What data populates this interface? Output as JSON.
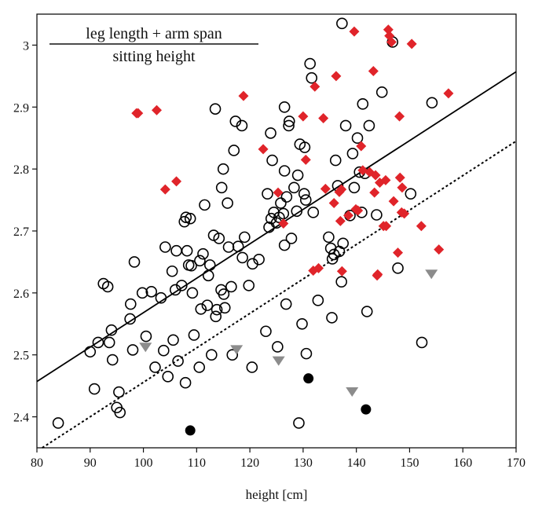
{
  "chart_data": {
    "type": "scatter",
    "title": "",
    "xlabel": "height [cm]",
    "ylabel": "",
    "xlim": [
      80,
      170
    ],
    "ylim": [
      2.35,
      3.05
    ],
    "xticks": [
      80,
      90,
      100,
      110,
      120,
      130,
      140,
      150,
      160,
      170
    ],
    "yticks": [
      2.4,
      2.5,
      2.6,
      2.7,
      2.8,
      2.9,
      3
    ],
    "ytick_labels": [
      "2.4",
      "2.5",
      "2.6",
      "2.7",
      "2.8",
      "2.9",
      "3"
    ],
    "grid": false,
    "annotation": {
      "numerator": "leg length + arm span",
      "denominator": "sitting height"
    },
    "series": [
      {
        "marker": "open-circle",
        "color": "#000000",
        "points": [
          [
            84,
            2.39
          ],
          [
            90,
            2.505
          ],
          [
            90.8,
            2.445
          ],
          [
            91.5,
            2.52
          ],
          [
            92.5,
            2.615
          ],
          [
            93.3,
            2.61
          ],
          [
            93.6,
            2.52
          ],
          [
            94,
            2.54
          ],
          [
            94.2,
            2.492
          ],
          [
            95,
            2.415
          ],
          [
            95.4,
            2.44
          ],
          [
            95.6,
            2.407
          ],
          [
            97.5,
            2.558
          ],
          [
            97.6,
            2.582
          ],
          [
            98,
            2.508
          ],
          [
            98.3,
            2.65
          ],
          [
            99.8,
            2.6
          ],
          [
            100.5,
            2.53
          ],
          [
            101.5,
            2.602
          ],
          [
            102.2,
            2.48
          ],
          [
            103.3,
            2.592
          ],
          [
            103.8,
            2.507
          ],
          [
            104.1,
            2.674
          ],
          [
            104.6,
            2.465
          ],
          [
            105.4,
            2.635
          ],
          [
            105.6,
            2.524
          ],
          [
            106,
            2.605
          ],
          [
            106.2,
            2.668
          ],
          [
            106.5,
            2.49
          ],
          [
            107.2,
            2.612
          ],
          [
            107.7,
            2.715
          ],
          [
            107.9,
            2.455
          ],
          [
            108,
            2.722
          ],
          [
            108.2,
            2.668
          ],
          [
            108.5,
            2.645
          ],
          [
            108.8,
            2.72
          ],
          [
            109,
            2.644
          ],
          [
            109.2,
            2.6
          ],
          [
            109.5,
            2.532
          ],
          [
            110.5,
            2.48
          ],
          [
            110.6,
            2.652
          ],
          [
            110.8,
            2.574
          ],
          [
            111.2,
            2.663
          ],
          [
            111.5,
            2.742
          ],
          [
            112,
            2.58
          ],
          [
            112.2,
            2.628
          ],
          [
            112.5,
            2.645
          ],
          [
            112.8,
            2.5
          ],
          [
            113.2,
            2.693
          ],
          [
            113.5,
            2.897
          ],
          [
            113.6,
            2.562
          ],
          [
            113.8,
            2.573
          ],
          [
            114.2,
            2.688
          ],
          [
            114.6,
            2.605
          ],
          [
            114.7,
            2.77
          ],
          [
            115,
            2.8
          ],
          [
            115.1,
            2.598
          ],
          [
            115.3,
            2.576
          ],
          [
            115.8,
            2.745
          ],
          [
            116,
            2.674
          ],
          [
            116.5,
            2.61
          ],
          [
            116.7,
            2.5
          ],
          [
            117,
            2.83
          ],
          [
            117.3,
            2.877
          ],
          [
            117.8,
            2.675
          ],
          [
            118.5,
            2.87
          ],
          [
            118.6,
            2.657
          ],
          [
            119,
            2.69
          ],
          [
            119.8,
            2.612
          ],
          [
            120.4,
            2.48
          ],
          [
            120.5,
            2.647
          ],
          [
            121.7,
            2.654
          ],
          [
            123,
            2.538
          ],
          [
            123.3,
            2.76
          ],
          [
            123.6,
            2.706
          ],
          [
            123.9,
            2.858
          ],
          [
            124,
            2.72
          ],
          [
            124.2,
            2.814
          ],
          [
            124.5,
            2.73
          ],
          [
            125,
            2.713
          ],
          [
            125.2,
            2.513
          ],
          [
            125.5,
            2.722
          ],
          [
            125.8,
            2.745
          ],
          [
            126.3,
            2.728
          ],
          [
            126.5,
            2.677
          ],
          [
            126.5,
            2.797
          ],
          [
            126.5,
            2.9
          ],
          [
            126.8,
            2.582
          ],
          [
            126.9,
            2.755
          ],
          [
            127.3,
            2.87
          ],
          [
            127.4,
            2.877
          ],
          [
            127.8,
            2.688
          ],
          [
            128.3,
            2.77
          ],
          [
            128.8,
            2.732
          ],
          [
            129,
            2.79
          ],
          [
            129.2,
            2.39
          ],
          [
            129.4,
            2.84
          ],
          [
            129.8,
            2.55
          ],
          [
            130.2,
            2.76
          ],
          [
            130.3,
            2.835
          ],
          [
            130.5,
            2.75
          ],
          [
            130.6,
            2.502
          ],
          [
            131.3,
            2.97
          ],
          [
            131.6,
            2.947
          ],
          [
            131.9,
            2.73
          ],
          [
            132.8,
            2.588
          ],
          [
            134.8,
            2.69
          ],
          [
            135.2,
            2.672
          ],
          [
            135.4,
            2.56
          ],
          [
            135.5,
            2.655
          ],
          [
            135.8,
            2.662
          ],
          [
            136.1,
            2.814
          ],
          [
            136.5,
            2.773
          ],
          [
            136.8,
            2.667
          ],
          [
            137.2,
            2.618
          ],
          [
            137.3,
            3.035
          ],
          [
            137.5,
            2.68
          ],
          [
            138,
            2.87
          ],
          [
            138.8,
            2.725
          ],
          [
            139.3,
            2.825
          ],
          [
            139.6,
            2.77
          ],
          [
            140.2,
            2.85
          ],
          [
            140.6,
            2.795
          ],
          [
            141,
            2.73
          ],
          [
            141.2,
            2.905
          ],
          [
            141.6,
            2.793
          ],
          [
            142,
            2.57
          ],
          [
            142.4,
            2.87
          ],
          [
            143.8,
            2.726
          ],
          [
            144.8,
            2.924
          ],
          [
            146.8,
            3.005
          ],
          [
            147.8,
            2.64
          ],
          [
            150.2,
            2.76
          ],
          [
            152.3,
            2.52
          ],
          [
            154.2,
            2.907
          ]
        ]
      },
      {
        "marker": "filled-diamond",
        "color": "#e0242a",
        "points": [
          [
            98.7,
            2.89
          ],
          [
            99,
            2.89
          ],
          [
            102.5,
            2.895
          ],
          [
            104.1,
            2.767
          ],
          [
            106.2,
            2.78
          ],
          [
            118.8,
            2.918
          ],
          [
            122.5,
            2.832
          ],
          [
            125.3,
            2.762
          ],
          [
            126.3,
            2.712
          ],
          [
            130,
            2.885
          ],
          [
            130.5,
            2.815
          ],
          [
            131.9,
            2.636
          ],
          [
            132.2,
            2.933
          ],
          [
            132.9,
            2.64
          ],
          [
            133.8,
            2.882
          ],
          [
            134.2,
            2.768
          ],
          [
            135.8,
            2.745
          ],
          [
            136.2,
            2.95
          ],
          [
            136.8,
            2.763
          ],
          [
            137,
            2.716
          ],
          [
            137.2,
            2.767
          ],
          [
            137.3,
            2.635
          ],
          [
            138.5,
            2.725
          ],
          [
            139.6,
            3.022
          ],
          [
            139.9,
            2.735
          ],
          [
            140.3,
            2.733
          ],
          [
            140.9,
            2.837
          ],
          [
            141.2,
            2.798
          ],
          [
            142.5,
            2.795
          ],
          [
            143.2,
            2.958
          ],
          [
            143.4,
            2.762
          ],
          [
            143.6,
            2.79
          ],
          [
            143.9,
            2.628
          ],
          [
            144,
            2.63
          ],
          [
            144.4,
            2.778
          ],
          [
            145.1,
            2.708
          ],
          [
            145.5,
            2.782
          ],
          [
            145.6,
            2.708
          ],
          [
            146,
            3.025
          ],
          [
            146.2,
            3.015
          ],
          [
            146.6,
            3.005
          ],
          [
            147,
            2.748
          ],
          [
            147.8,
            2.665
          ],
          [
            148.1,
            2.885
          ],
          [
            148.2,
            2.786
          ],
          [
            148.5,
            2.73
          ],
          [
            148.6,
            2.77
          ],
          [
            149,
            2.728
          ],
          [
            150.4,
            3.002
          ],
          [
            152.2,
            2.708
          ],
          [
            155.5,
            2.67
          ],
          [
            157.3,
            2.922
          ]
        ]
      },
      {
        "marker": "filled-circle",
        "color": "#000000",
        "points": [
          [
            108.8,
            2.378
          ],
          [
            131,
            2.462
          ],
          [
            141.8,
            2.412
          ]
        ]
      },
      {
        "marker": "filled-triangle-down",
        "color": "#8c8c8c",
        "points": [
          [
            100.4,
            2.512
          ],
          [
            117.5,
            2.508
          ],
          [
            125.4,
            2.49
          ],
          [
            139.2,
            2.44
          ],
          [
            154.1,
            2.63
          ]
        ]
      }
    ],
    "lines": [
      {
        "style": "solid",
        "color": "#000000",
        "x": [
          80,
          170
        ],
        "y": [
          2.457,
          2.957
        ]
      },
      {
        "style": "dotted",
        "color": "#000000",
        "x": [
          81,
          170
        ],
        "y": [
          2.35,
          2.845
        ]
      }
    ]
  }
}
